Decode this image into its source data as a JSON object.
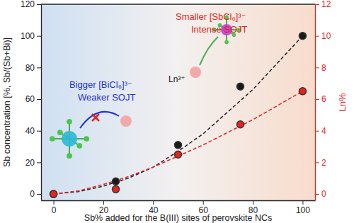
{
  "chart_data": {
    "type": "scatter",
    "x_label": "Sb% added for the B(III) sites of perovskite NCs",
    "y_label": "Sb concentration [%, Sb/(Sb+Bi)]",
    "y2_label": "Ln%",
    "xlim": [
      -5,
      105
    ],
    "xticks": [
      0,
      20,
      40,
      60,
      80,
      100
    ],
    "ylim": [
      -4,
      120
    ],
    "yticks": [
      0,
      20,
      40,
      60,
      80,
      100,
      120
    ],
    "y2lim": [
      -0.4,
      12
    ],
    "y2ticks": [
      0,
      2,
      4,
      6,
      8,
      10,
      12
    ],
    "grid": false,
    "series": [
      {
        "type": "line",
        "line_style": "dashed",
        "color": "#222222",
        "x": [
          0,
          10,
          20,
          30,
          40,
          50,
          60,
          70,
          80,
          90,
          100
        ],
        "values": [
          0,
          1.5,
          5,
          10,
          17,
          27,
          38,
          52,
          66,
          83,
          100
        ]
      },
      {
        "type": "line",
        "line_style": "dashed",
        "color": "#e8231f",
        "axis": "y2",
        "x": [
          0,
          10,
          20,
          30,
          40,
          50,
          60,
          70,
          80,
          90,
          100
        ],
        "values": [
          0,
          0.2,
          0.6,
          1.1,
          1.7,
          2.4,
          3.1,
          3.9,
          4.7,
          5.6,
          6.5
        ]
      },
      {
        "type": "scatter",
        "marker": "circle",
        "color": "#1a1a1a",
        "x": [
          0,
          25,
          50,
          75,
          100
        ],
        "values": [
          0,
          8,
          31,
          68,
          100
        ]
      },
      {
        "type": "scatter",
        "marker": "circle",
        "color": "#e8231f",
        "axis": "y2",
        "x": [
          0,
          25,
          50,
          75,
          100
        ],
        "values": [
          0,
          0.3,
          2.5,
          4.4,
          6.5
        ]
      }
    ],
    "annotations": [
      {
        "text": "Smaller [SbCl₆]³⁻",
        "color": "#e8231f"
      },
      {
        "text": "Intense SOJT",
        "color": "#e8231f"
      },
      {
        "text": "Bigger [BiCl₆]³⁻",
        "color": "#2233dd"
      },
      {
        "text": "Weaker SOJT",
        "color": "#2233dd"
      },
      {
        "text": "Ln³⁺",
        "color": "#222222"
      }
    ]
  }
}
